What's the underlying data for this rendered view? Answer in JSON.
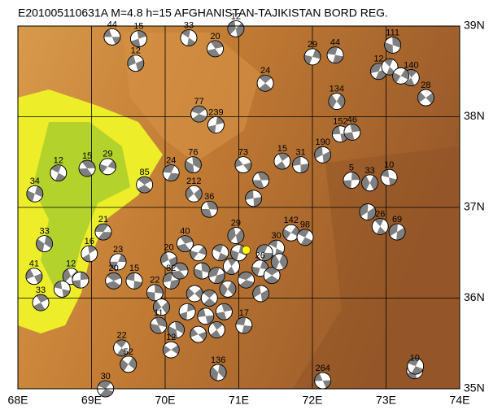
{
  "chart_data": {
    "type": "map",
    "title": "E201005110631A  M=4.8  h=15   AFGHANISTAN-TAJIKISTAN BORD REG.",
    "xlim": [
      68,
      74
    ],
    "ylim": [
      35,
      39
    ],
    "xticks": [
      {
        "value": 68,
        "label": "68E"
      },
      {
        "value": 69,
        "label": "69E"
      },
      {
        "value": 70,
        "label": "70E"
      },
      {
        "value": 71,
        "label": "71E"
      },
      {
        "value": 72,
        "label": "72E"
      },
      {
        "value": 73,
        "label": "73E"
      },
      {
        "value": 74,
        "label": "74E"
      }
    ],
    "yticks": [
      {
        "value": 35,
        "label": "35N"
      },
      {
        "value": 36,
        "label": "36N"
      },
      {
        "value": 37,
        "label": "37N"
      },
      {
        "value": 38,
        "label": "38N"
      },
      {
        "value": 39,
        "label": "39N"
      }
    ],
    "grid": true,
    "color": "#7f7f7f",
    "highlight_color": "#ffff00",
    "events": [
      {
        "lon": 69.28,
        "lat": 38.88,
        "label": "44"
      },
      {
        "lon": 69.64,
        "lat": 38.86,
        "label": "15"
      },
      {
        "lon": 69.6,
        "lat": 38.59,
        "label": "12"
      },
      {
        "lon": 70.68,
        "lat": 38.75,
        "label": "20"
      },
      {
        "lon": 70.96,
        "lat": 38.97,
        "label": "12"
      },
      {
        "lon": 70.32,
        "lat": 38.87,
        "label": "33"
      },
      {
        "lon": 72.0,
        "lat": 38.66,
        "label": "29"
      },
      {
        "lon": 72.31,
        "lat": 38.68,
        "label": "44"
      },
      {
        "lon": 73.09,
        "lat": 38.79,
        "label": "111"
      },
      {
        "lon": 72.9,
        "lat": 38.5,
        "label": "12"
      },
      {
        "lon": 73.34,
        "lat": 38.43,
        "label": "140"
      },
      {
        "lon": 73.54,
        "lat": 38.21,
        "label": "28"
      },
      {
        "lon": 71.36,
        "lat": 38.37,
        "label": "24"
      },
      {
        "lon": 72.33,
        "lat": 38.17,
        "label": "134"
      },
      {
        "lon": 70.46,
        "lat": 38.03,
        "label": "77"
      },
      {
        "lon": 70.69,
        "lat": 37.91,
        "label": "239"
      },
      {
        "lon": 72.38,
        "lat": 37.81,
        "label": "152"
      },
      {
        "lon": 72.54,
        "lat": 37.83,
        "label": "46"
      },
      {
        "lon": 72.14,
        "lat": 37.58,
        "label": "190"
      },
      {
        "lon": 68.94,
        "lat": 37.43,
        "label": "15"
      },
      {
        "lon": 69.22,
        "lat": 37.45,
        "label": "29"
      },
      {
        "lon": 68.55,
        "lat": 37.38,
        "label": "12"
      },
      {
        "lon": 68.23,
        "lat": 37.15,
        "label": "34"
      },
      {
        "lon": 70.08,
        "lat": 37.38,
        "label": "24"
      },
      {
        "lon": 70.38,
        "lat": 37.47,
        "label": "76"
      },
      {
        "lon": 71.06,
        "lat": 37.47,
        "label": "73"
      },
      {
        "lon": 71.59,
        "lat": 37.51,
        "label": "15"
      },
      {
        "lon": 70.39,
        "lat": 37.15,
        "label": "212"
      },
      {
        "lon": 69.72,
        "lat": 37.25,
        "label": "85"
      },
      {
        "lon": 72.78,
        "lat": 37.27,
        "label": "33"
      },
      {
        "lon": 73.04,
        "lat": 37.33,
        "label": "10"
      },
      {
        "lon": 72.53,
        "lat": 37.3,
        "label": "5"
      },
      {
        "lon": 71.84,
        "lat": 37.47,
        "label": "31"
      },
      {
        "lon": 70.6,
        "lat": 36.98,
        "label": "36"
      },
      {
        "lon": 73.15,
        "lat": 36.73,
        "label": "69"
      },
      {
        "lon": 72.92,
        "lat": 36.79,
        "label": "26"
      },
      {
        "lon": 71.71,
        "lat": 36.72,
        "label": "142"
      },
      {
        "lon": 71.9,
        "lat": 36.67,
        "label": "98"
      },
      {
        "lon": 68.36,
        "lat": 36.6,
        "label": "33"
      },
      {
        "lon": 69.16,
        "lat": 36.73,
        "label": "21"
      },
      {
        "lon": 68.97,
        "lat": 36.49,
        "label": "16"
      },
      {
        "lon": 68.22,
        "lat": 36.24,
        "label": "41"
      },
      {
        "lon": 68.31,
        "lat": 35.95,
        "label": "33"
      },
      {
        "lon": 68.72,
        "lat": 36.24,
        "label": "12"
      },
      {
        "lon": 69.3,
        "lat": 36.19,
        "label": "20"
      },
      {
        "lon": 69.36,
        "lat": 36.4,
        "label": "23"
      },
      {
        "lon": 69.58,
        "lat": 36.19,
        "label": "15"
      },
      {
        "lon": 69.86,
        "lat": 36.06,
        "label": "22"
      },
      {
        "lon": 70.08,
        "lat": 36.19,
        "label": "82"
      },
      {
        "lon": 69.91,
        "lat": 35.7,
        "label": "11"
      },
      {
        "lon": 70.08,
        "lat": 35.43,
        "label": "12"
      },
      {
        "lon": 69.41,
        "lat": 35.45,
        "label": "22"
      },
      {
        "lon": 69.5,
        "lat": 35.27,
        "label": "52"
      },
      {
        "lon": 69.19,
        "lat": 35.0,
        "label": "30"
      },
      {
        "lon": 70.72,
        "lat": 35.18,
        "label": "136"
      },
      {
        "lon": 72.14,
        "lat": 35.09,
        "label": "264"
      },
      {
        "lon": 73.39,
        "lat": 35.2,
        "label": "10"
      },
      {
        "lon": 70.05,
        "lat": 36.42,
        "label": "20"
      },
      {
        "lon": 70.27,
        "lat": 36.6,
        "label": "40"
      },
      {
        "lon": 70.96,
        "lat": 36.69,
        "label": "29"
      },
      {
        "lon": 71.51,
        "lat": 36.55,
        "label": "30"
      },
      {
        "lon": 71.29,
        "lat": 36.33,
        "label": "26"
      },
      {
        "lon": 71.07,
        "lat": 35.7,
        "label": "17"
      },
      {
        "lon": 70.5,
        "lat": 36.3
      },
      {
        "lon": 70.7,
        "lat": 36.25
      },
      {
        "lon": 70.9,
        "lat": 36.35
      },
      {
        "lon": 70.4,
        "lat": 36.05
      },
      {
        "lon": 70.6,
        "lat": 36.0
      },
      {
        "lon": 70.85,
        "lat": 36.1
      },
      {
        "lon": 71.1,
        "lat": 36.2
      },
      {
        "lon": 70.3,
        "lat": 35.85
      },
      {
        "lon": 70.55,
        "lat": 35.8
      },
      {
        "lon": 70.8,
        "lat": 35.85
      },
      {
        "lon": 71.3,
        "lat": 36.05
      },
      {
        "lon": 70.2,
        "lat": 36.3
      },
      {
        "lon": 70.45,
        "lat": 36.5
      },
      {
        "lon": 70.75,
        "lat": 36.5
      },
      {
        "lon": 71.0,
        "lat": 36.5
      },
      {
        "lon": 71.35,
        "lat": 36.5
      },
      {
        "lon": 70.15,
        "lat": 35.65
      },
      {
        "lon": 70.45,
        "lat": 35.6
      },
      {
        "lon": 70.7,
        "lat": 35.65
      },
      {
        "lon": 69.95,
        "lat": 35.9
      },
      {
        "lon": 71.45,
        "lat": 36.25
      },
      {
        "lon": 71.55,
        "lat": 36.4
      },
      {
        "lon": 68.6,
        "lat": 36.1
      },
      {
        "lon": 68.85,
        "lat": 36.2
      },
      {
        "lon": 71.2,
        "lat": 37.1
      },
      {
        "lon": 71.3,
        "lat": 37.3
      },
      {
        "lon": 72.75,
        "lat": 36.95
      },
      {
        "lon": 73.05,
        "lat": 38.55
      },
      {
        "lon": 73.2,
        "lat": 38.45
      },
      {
        "lon": 73.4,
        "lat": 35.25
      }
    ],
    "highlight": {
      "lon": 71.1,
      "lat": 36.53
    }
  }
}
